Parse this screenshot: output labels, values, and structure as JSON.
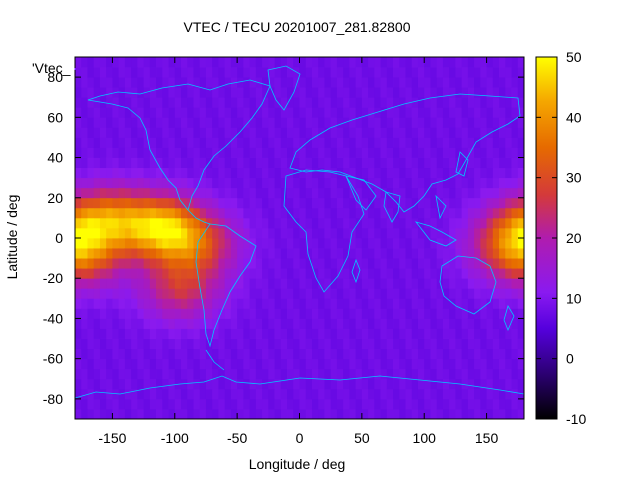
{
  "chart_data": {
    "type": "heatmap",
    "title": "VTEC / TECU 20201007_281.82800",
    "xlabel": "Longitude / deg",
    "ylabel": "Latitude / deg",
    "xlim": [
      -180,
      180
    ],
    "ylim": [
      -90,
      90
    ],
    "xticks": [
      "-150",
      "-100",
      "-50",
      "0",
      "50",
      "100",
      "150"
    ],
    "xtick_values": [
      -150,
      -100,
      -50,
      0,
      50,
      100,
      150
    ],
    "yticks": [
      "-80",
      "-60",
      "-40",
      "-20",
      "0",
      "20",
      "40",
      "60",
      "80"
    ],
    "ytick_values": [
      -80,
      -60,
      -40,
      -20,
      0,
      20,
      40,
      60,
      80
    ],
    "legend_label": "'Vtec_",
    "legend_position": "top-left",
    "colorbar": {
      "min": -10,
      "max": 50,
      "ticks": [
        "50",
        "40",
        "30",
        "20",
        "10",
        "0",
        "-10"
      ],
      "tick_values": [
        50,
        40,
        30,
        20,
        10,
        0,
        -10
      ]
    },
    "colors": {
      "background_level": "#7b1cff",
      "coastline": "#00c8ff"
    },
    "background_vtec": 8,
    "enhancements": [
      {
        "lon": -110,
        "lat": 5,
        "peak": 42
      },
      {
        "lon": -150,
        "lat": 10,
        "peak": 30
      },
      {
        "lon": -80,
        "lat": -3,
        "peak": 26
      },
      {
        "lon": -95,
        "lat": -25,
        "peak": 25
      },
      {
        "lon": -170,
        "lat": -10,
        "peak": 24
      },
      {
        "lon": 180,
        "lat": 5,
        "peak": 27
      },
      {
        "lon": 165,
        "lat": -5,
        "peak": 22
      }
    ]
  }
}
